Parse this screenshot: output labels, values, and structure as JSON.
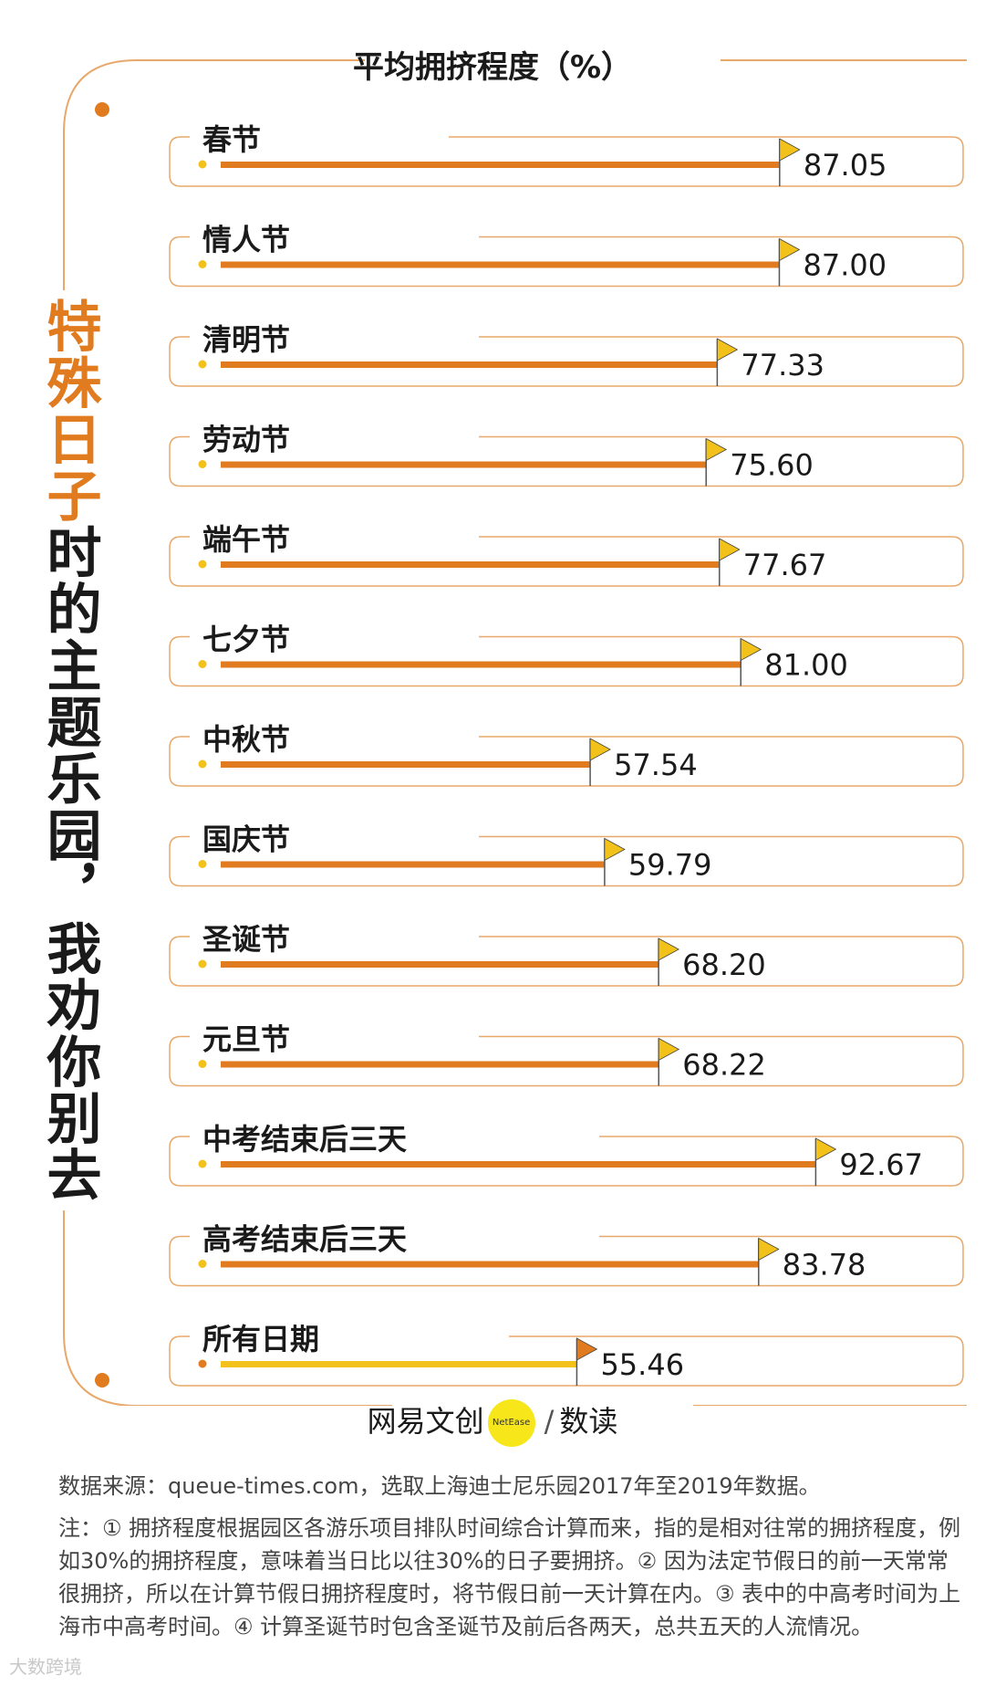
{
  "headline": {
    "highlight": "特殊日子",
    "rest": "时的主题乐园，我劝你别去"
  },
  "chart_data": {
    "type": "bar",
    "title": "平均拥挤程度（%）",
    "categories": [
      "春节",
      "情人节",
      "清明节",
      "劳动节",
      "端午节",
      "七夕节",
      "中秋节",
      "国庆节",
      "圣诞节",
      "元旦节",
      "中考结束后三天",
      "高考结束后三天",
      "所有日期"
    ],
    "values": [
      87.05,
      87.0,
      77.33,
      75.6,
      77.67,
      81.0,
      57.54,
      59.79,
      68.2,
      68.22,
      92.67,
      83.78,
      55.46
    ],
    "value_labels": [
      "87.05",
      "87.00",
      "77.33",
      "75.60",
      "77.67",
      "81.00",
      "57.54",
      "59.79",
      "68.20",
      "68.22",
      "92.67",
      "83.78",
      "55.46"
    ],
    "highlight_category": "所有日期",
    "colors": {
      "bar": "#e07b20",
      "highlight_bar": "#f2c21b",
      "flag": "#f2c21b",
      "highlight_flag": "#e07b20",
      "frame": "#e8a86a"
    }
  },
  "logo": {
    "left": "网易文创",
    "badge": "NetEase",
    "right": "数读"
  },
  "source": "数据来源：queue-times.com，选取上海迪士尼乐园2017年至2019年数据。",
  "notes": "注：① 拥挤程度根据园区各游乐项目排队时间综合计算而来，指的是相对往常的拥挤程度，例如30%的拥挤程度，意味着当日比以往30%的日子要拥挤。② 因为法定节假日的前一天常常很拥挤，所以在计算节假日拥挤程度时，将节假日前一天计算在内。③ 表中的中高考时间为上海市中高考时间。④ 计算圣诞节时包含圣诞节及前后各两天，总共五天的人流情况。",
  "watermark": "大数跨境"
}
